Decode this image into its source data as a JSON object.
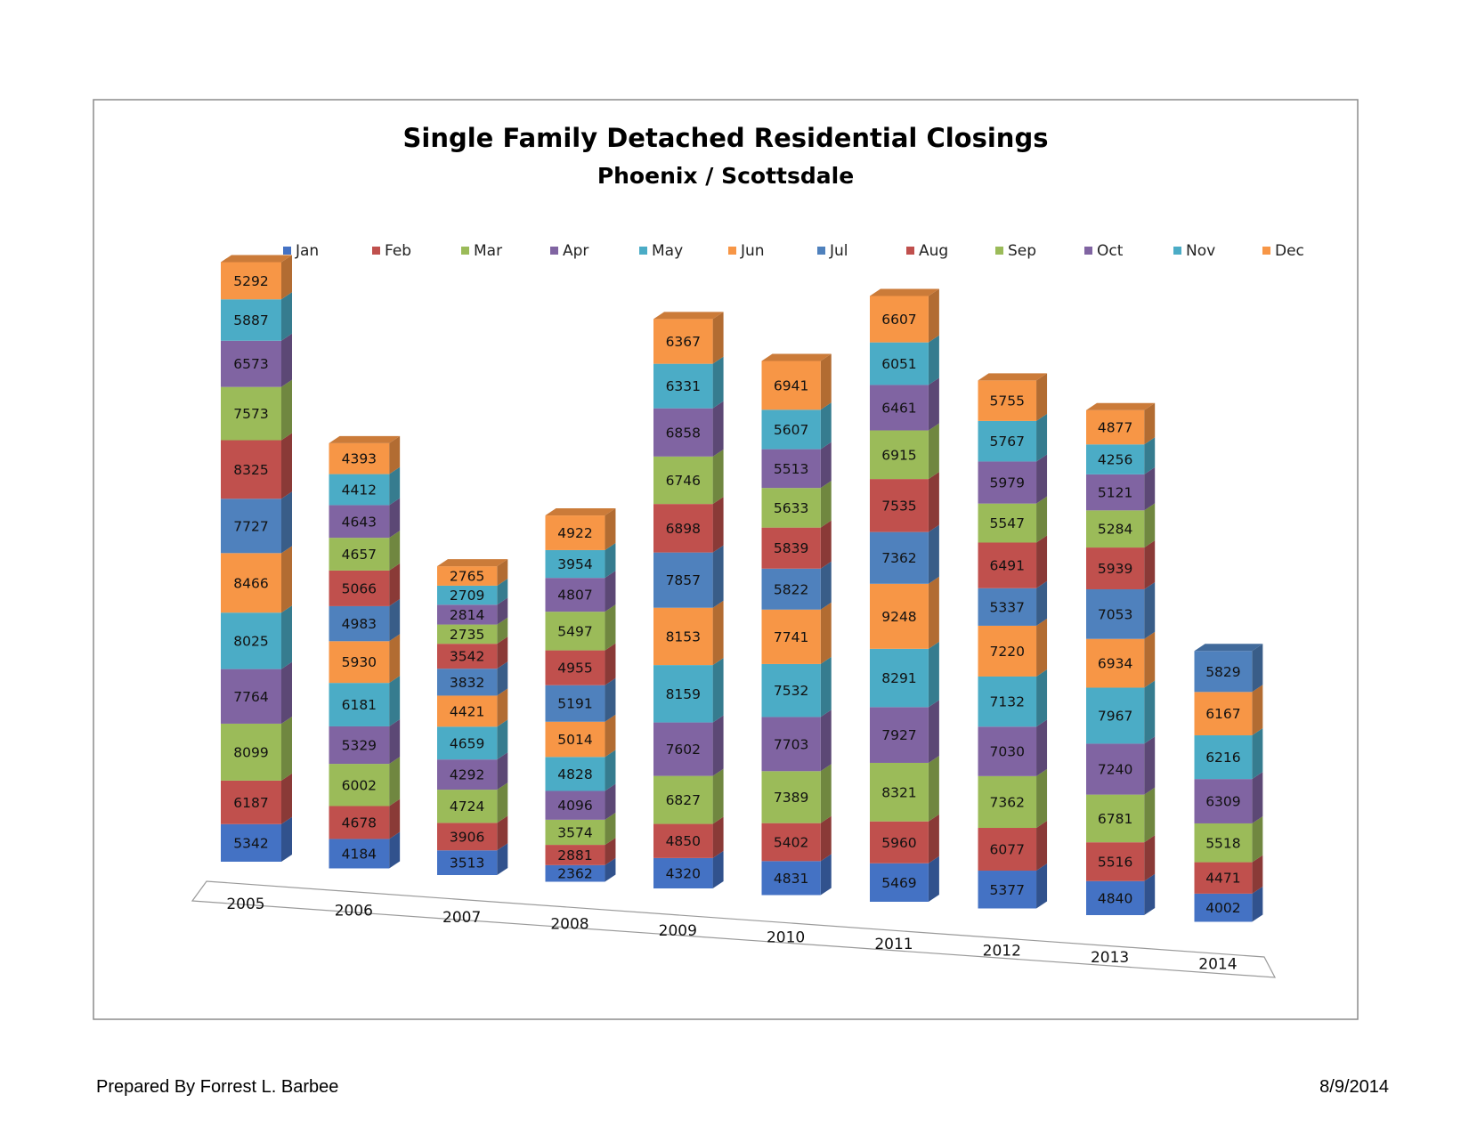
{
  "chart_data": {
    "type": "bar",
    "stacked": true,
    "style": "3d-stacked-column",
    "title": "Single Family Detached Residential Closings",
    "subtitle": "Phoenix / Scottsdale",
    "legend_position": "top",
    "categories": [
      "2005",
      "2006",
      "2007",
      "2008",
      "2009",
      "2010",
      "2011",
      "2012",
      "2013",
      "2014"
    ],
    "series": [
      {
        "name": "Jan",
        "color": "#4472C4",
        "values": [
          5342,
          4184,
          3513,
          2362,
          4320,
          4831,
          5469,
          5377,
          4840,
          4002
        ]
      },
      {
        "name": "Feb",
        "color": "#C0504D",
        "values": [
          6187,
          4678,
          3906,
          2881,
          4850,
          5402,
          5960,
          6077,
          5516,
          4471
        ]
      },
      {
        "name": "Mar",
        "color": "#9BBB59",
        "values": [
          8099,
          6002,
          4724,
          3574,
          6827,
          7389,
          8321,
          7362,
          6781,
          5518
        ]
      },
      {
        "name": "Apr",
        "color": "#8064A2",
        "values": [
          7764,
          5329,
          4292,
          4096,
          7602,
          7703,
          7927,
          7030,
          7240,
          6309
        ]
      },
      {
        "name": "May",
        "color": "#4BACC6",
        "values": [
          8025,
          6181,
          4659,
          4828,
          8159,
          7532,
          8291,
          7132,
          7967,
          6216
        ]
      },
      {
        "name": "Jun",
        "color": "#F79646",
        "values": [
          8466,
          5930,
          4421,
          5014,
          8153,
          7741,
          9248,
          7220,
          6934,
          6167
        ]
      },
      {
        "name": "Jul",
        "color": "#4F81BD",
        "values": [
          7727,
          4983,
          3832,
          5191,
          7857,
          5822,
          7362,
          5337,
          7053,
          5829
        ]
      },
      {
        "name": "Aug",
        "color": "#C0504D",
        "values": [
          8325,
          5066,
          3542,
          4955,
          6898,
          5839,
          7535,
          6491,
          5939,
          null
        ]
      },
      {
        "name": "Sep",
        "color": "#9BBB59",
        "values": [
          7573,
          4657,
          2735,
          5497,
          6746,
          5633,
          6915,
          5547,
          5284,
          null
        ]
      },
      {
        "name": "Oct",
        "color": "#8064A2",
        "values": [
          6573,
          4643,
          2814,
          4807,
          6858,
          5513,
          6461,
          5979,
          5121,
          null
        ]
      },
      {
        "name": "Nov",
        "color": "#4BACC6",
        "values": [
          5887,
          4412,
          2709,
          3954,
          6331,
          5607,
          6051,
          5767,
          4256,
          null
        ]
      },
      {
        "name": "Dec",
        "color": "#F79646",
        "values": [
          5292,
          4393,
          2765,
          4922,
          6367,
          6941,
          6607,
          5755,
          4877,
          null
        ]
      }
    ]
  },
  "footer": {
    "prepared_by": "Prepared By Forrest L. Barbee",
    "date": "8/9/2014"
  }
}
